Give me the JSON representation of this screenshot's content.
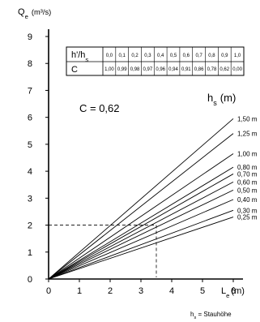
{
  "chart_data": {
    "type": "line",
    "ylabel": "Q_e (m³/s)",
    "xlabel": "L_e (m)",
    "xlim": [
      0,
      7
    ],
    "ylim": [
      0,
      9
    ],
    "x_ticks": [
      0,
      1,
      2,
      3,
      4,
      5,
      6
    ],
    "y_ticks": [
      0,
      1,
      2,
      3,
      4,
      5,
      6,
      7,
      8,
      9
    ],
    "grid": false,
    "table": {
      "row1_label": "h'/h_s",
      "row1": [
        "0,0",
        "0,1",
        "0,2",
        "0,3",
        "0,4",
        "0,5",
        "0,6",
        "0,7",
        "0,8",
        "0,9",
        "1,0"
      ],
      "row2_label": "C",
      "row2": [
        "1,00",
        "0,99",
        "0,98",
        "0,97",
        "0,96",
        "0,94",
        "0,91",
        "0,86",
        "0,78",
        "0,62",
        "0,00"
      ]
    },
    "annotation": "C = 0,62",
    "series_title": "h_s (m)",
    "series": [
      {
        "name": "1,50 m",
        "x": [
          0,
          6
        ],
        "y": [
          0,
          5.95
        ]
      },
      {
        "name": "1,25 m",
        "x": [
          0,
          6
        ],
        "y": [
          0,
          5.4
        ]
      },
      {
        "name": "1,00 m",
        "x": [
          0,
          6
        ],
        "y": [
          0,
          4.65
        ]
      },
      {
        "name": "0,80 m",
        "x": [
          0,
          6
        ],
        "y": [
          0,
          4.15
        ]
      },
      {
        "name": "0,70 m",
        "x": [
          0,
          6
        ],
        "y": [
          0,
          3.9
        ]
      },
      {
        "name": "0,60 m",
        "x": [
          0,
          6
        ],
        "y": [
          0,
          3.6
        ]
      },
      {
        "name": "0,50 m",
        "x": [
          0,
          6
        ],
        "y": [
          0,
          3.3
        ]
      },
      {
        "name": "0,40 m",
        "x": [
          0,
          6
        ],
        "y": [
          0,
          2.95
        ]
      },
      {
        "name": "0,30 m",
        "x": [
          0,
          6
        ],
        "y": [
          0,
          2.55
        ]
      },
      {
        "name": "0,25 m",
        "x": [
          0,
          6
        ],
        "y": [
          0,
          2.3
        ]
      }
    ],
    "reference": {
      "x": 3.5,
      "y": 2.0
    },
    "footnote": "h_s = Stauhöhe"
  }
}
